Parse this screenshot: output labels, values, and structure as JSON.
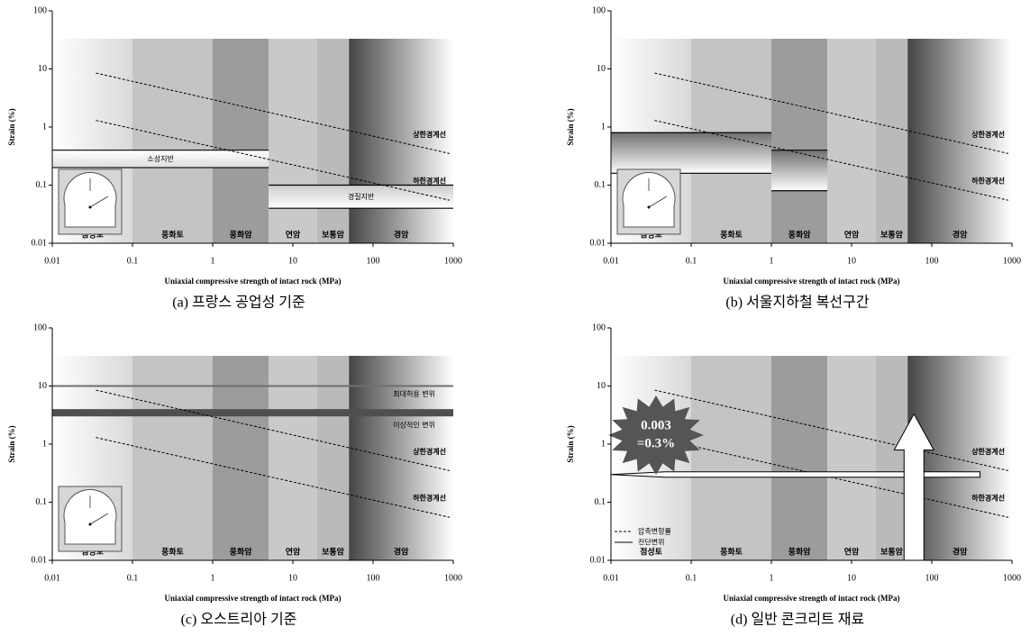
{
  "chart_data": [
    {
      "type": "line",
      "title": "(a) 프랑스 공업성 기준",
      "xlabel": "Uniaxial compressive strength of intact rock (MPa)",
      "ylabel": "Strain (%)",
      "xscale": "log",
      "yscale": "log",
      "xlim": [
        0.01,
        1000
      ],
      "ylim": [
        0.01,
        100
      ],
      "xticks": [
        0.01,
        0.1,
        1,
        10,
        100,
        1000
      ],
      "yticks": [
        0.01,
        0.1,
        1,
        10,
        100
      ],
      "zones": [
        {
          "label": "점성토",
          "range": [
            0.01,
            0.1
          ],
          "color": [
            "#ffffff",
            "#d9d9d9"
          ]
        },
        {
          "label": "풍화토",
          "range": [
            0.1,
            1
          ],
          "color": "#c4c4c4"
        },
        {
          "label": "풍화암",
          "range": [
            1,
            5
          ],
          "color": "#9c9c9c"
        },
        {
          "label": "연암",
          "range": [
            5,
            20
          ],
          "color": "#c9c9c9"
        },
        {
          "label": "보통암",
          "range": [
            20,
            50
          ],
          "color": "#bababa"
        },
        {
          "label": "경암",
          "range": [
            50,
            1000
          ],
          "color": [
            "#454545",
            "#ffffff"
          ]
        }
      ],
      "series": [
        {
          "name": "상한경계선",
          "x": [
            0.035,
            900
          ],
          "values": [
            8.5,
            0.35
          ],
          "color": "#000000"
        },
        {
          "name": "하한경계선",
          "x": [
            0.035,
            900
          ],
          "values": [
            1.3,
            0.055
          ],
          "color": "#000000"
        }
      ],
      "ranges": [
        {
          "label": "소성지반",
          "x": [
            0.01,
            5
          ],
          "y": [
            0.2,
            0.4
          ],
          "color": [
            "#ffffff",
            "#dddddd"
          ]
        },
        {
          "label": "경질지반",
          "x": [
            5,
            1000
          ],
          "y": [
            0.04,
            0.1
          ],
          "color": [
            "#cccccc",
            "#ffffff"
          ]
        }
      ],
      "tunnel_inset": true
    },
    {
      "type": "line",
      "title": "(b) 서울지하철 복선구간",
      "xlabel": "Uniaxial compressive strength of intact rock (MPa)",
      "ylabel": "Strain (%)",
      "xscale": "log",
      "yscale": "log",
      "xlim": [
        0.01,
        1000
      ],
      "ylim": [
        0.01,
        100
      ],
      "xticks": [
        0.01,
        0.1,
        1,
        10,
        100,
        1000
      ],
      "yticks": [
        0.01,
        0.1,
        1,
        10,
        100
      ],
      "zones": [
        {
          "label": "점성토",
          "range": [
            0.01,
            0.1
          ],
          "color": [
            "#ffffff",
            "#d9d9d9"
          ]
        },
        {
          "label": "풍화토",
          "range": [
            0.1,
            1
          ],
          "color": "#c4c4c4"
        },
        {
          "label": "풍화암",
          "range": [
            1,
            5
          ],
          "color": "#9c9c9c"
        },
        {
          "label": "연암",
          "range": [
            5,
            20
          ],
          "color": "#c9c9c9"
        },
        {
          "label": "보통암",
          "range": [
            20,
            50
          ],
          "color": "#bababa"
        },
        {
          "label": "경암",
          "range": [
            50,
            1000
          ],
          "color": [
            "#454545",
            "#ffffff"
          ]
        }
      ],
      "series": [
        {
          "name": "상한경계선",
          "x": [
            0.035,
            900
          ],
          "values": [
            8.5,
            0.35
          ],
          "color": "#000000"
        },
        {
          "name": "하한경계선",
          "x": [
            0.035,
            900
          ],
          "values": [
            1.3,
            0.055
          ],
          "color": "#000000"
        }
      ],
      "ranges": [
        {
          "x": [
            0.01,
            1
          ],
          "y": [
            0.16,
            0.8
          ],
          "color": [
            "#707070",
            "#ffffff"
          ]
        },
        {
          "x": [
            1,
            5
          ],
          "y": [
            0.08,
            0.4
          ],
          "color": [
            "#707070",
            "#ffffff"
          ]
        }
      ],
      "tunnel_inset": true
    },
    {
      "type": "line",
      "title": "(c) 오스트리아 기준",
      "xlabel": "Uniaxial compressive strength of intact rock (MPa)",
      "ylabel": "Strain (%)",
      "xscale": "log",
      "yscale": "log",
      "xlim": [
        0.01,
        1000
      ],
      "ylim": [
        0.01,
        100
      ],
      "xticks": [
        0.01,
        0.1,
        1,
        10,
        100,
        1000
      ],
      "yticks": [
        0.01,
        0.1,
        1,
        10,
        100
      ],
      "zones": [
        {
          "label": "점성토",
          "range": [
            0.01,
            0.1
          ],
          "color": [
            "#ffffff",
            "#d9d9d9"
          ]
        },
        {
          "label": "풍화토",
          "range": [
            0.1,
            1
          ],
          "color": "#c4c4c4"
        },
        {
          "label": "풍화암",
          "range": [
            1,
            5
          ],
          "color": "#9c9c9c"
        },
        {
          "label": "연암",
          "range": [
            5,
            20
          ],
          "color": "#c9c9c9"
        },
        {
          "label": "보통암",
          "range": [
            20,
            50
          ],
          "color": "#bababa"
        },
        {
          "label": "경암",
          "range": [
            50,
            1000
          ],
          "color": [
            "#454545",
            "#ffffff"
          ]
        }
      ],
      "series": [
        {
          "name": "상한경계선",
          "x": [
            0.035,
            900
          ],
          "values": [
            8.5,
            0.35
          ],
          "color": "#000000"
        },
        {
          "name": "하한경계선",
          "x": [
            0.035,
            900
          ],
          "values": [
            1.3,
            0.055
          ],
          "color": "#000000"
        }
      ],
      "hlines": [
        {
          "label": "최대허용 변위",
          "value": 10,
          "color": "#6f6f6f"
        }
      ],
      "bands": [
        {
          "label": "이상적인 변위",
          "y": [
            3,
            4
          ],
          "color": "#4f4f4f"
        }
      ],
      "tunnel_inset": true
    },
    {
      "type": "line",
      "title": "(d) 일반 콘크리트 재료",
      "xlabel": "Uniaxial compressive strength of intact rock (MPa)",
      "ylabel": "Strain (%)",
      "xscale": "log",
      "yscale": "log",
      "xlim": [
        0.01,
        1000
      ],
      "ylim": [
        0.01,
        100
      ],
      "xticks": [
        0.01,
        0.1,
        1,
        10,
        100,
        1000
      ],
      "yticks": [
        0.01,
        0.1,
        1,
        10,
        100
      ],
      "zones": [
        {
          "label": "점성토",
          "range": [
            0.01,
            0.1
          ],
          "color": [
            "#ffffff",
            "#d9d9d9"
          ]
        },
        {
          "label": "풍화토",
          "range": [
            0.1,
            1
          ],
          "color": "#c4c4c4"
        },
        {
          "label": "풍화암",
          "range": [
            1,
            5
          ],
          "color": "#9c9c9c"
        },
        {
          "label": "연암",
          "range": [
            5,
            20
          ],
          "color": "#c9c9c9"
        },
        {
          "label": "보통암",
          "range": [
            20,
            50
          ],
          "color": "#bababa"
        },
        {
          "label": "경암",
          "range": [
            50,
            1000
          ],
          "color": [
            "#454545",
            "#ffffff"
          ]
        }
      ],
      "series": [
        {
          "name": "상한경계선",
          "x": [
            0.035,
            900
          ],
          "values": [
            8.5,
            0.35
          ],
          "color": "#000000"
        },
        {
          "name": "하한경계선",
          "x": [
            0.035,
            900
          ],
          "values": [
            1.3,
            0.055
          ],
          "color": "#000000"
        }
      ],
      "arrows": [
        {
          "x": [
            400,
            0.01
          ],
          "y": [
            0.3,
            0.3
          ]
        },
        {
          "x": [
            60,
            60
          ],
          "y": [
            0.01,
            3.3
          ]
        }
      ],
      "callout": [
        "0.003",
        "=0.3%"
      ],
      "legend": [
        {
          "label": "압축변형률",
          "dash": true
        },
        {
          "label": "전단변위",
          "dash": false
        }
      ],
      "tunnel_inset": false
    }
  ]
}
